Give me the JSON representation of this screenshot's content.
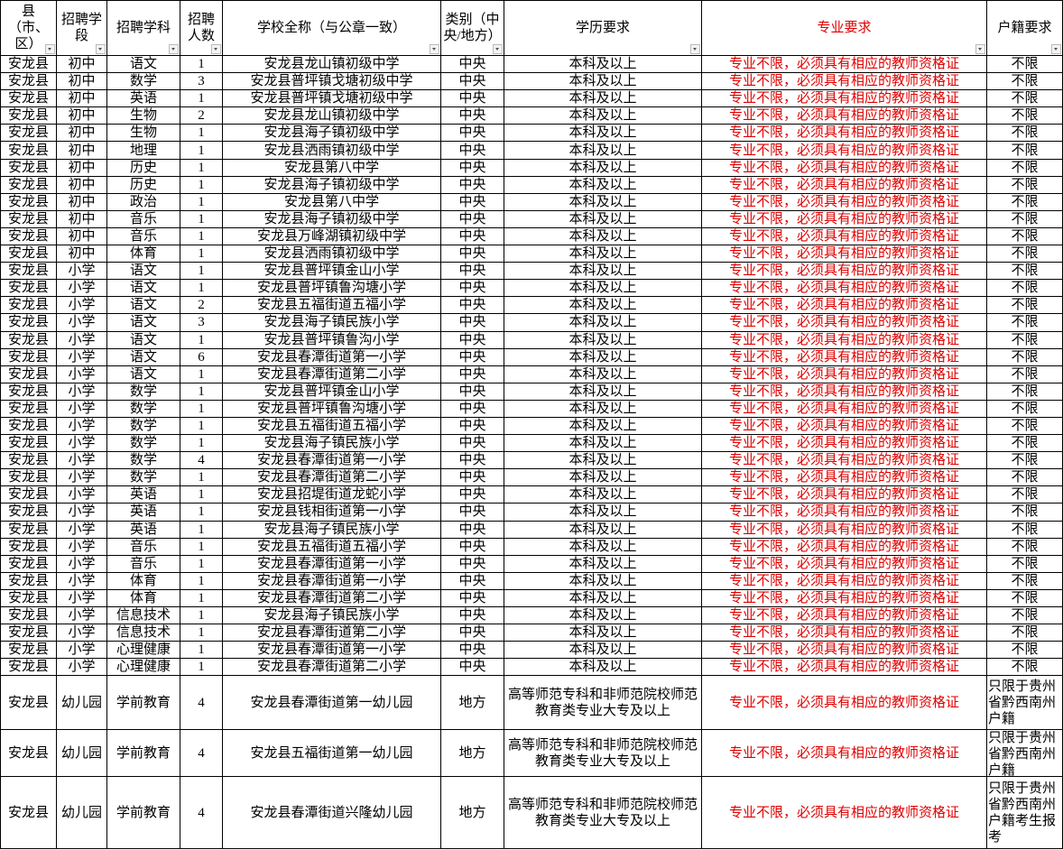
{
  "header": {
    "columns": [
      "县（市、区）",
      "招聘学段",
      "招聘学科",
      "招聘人数",
      "学校全称（与公章一致）",
      "类别（中央/地方）",
      "学历要求",
      "专业要求",
      "户籍要求"
    ]
  },
  "table": {
    "rows": [
      [
        "安龙县",
        "初中",
        "语文",
        "1",
        "安龙县龙山镇初级中学",
        "中央",
        "本科及以上",
        "专业不限，必须具有相应的教师资格证",
        "不限"
      ],
      [
        "安龙县",
        "初中",
        "数学",
        "3",
        "安龙县普坪镇戈塘初级中学",
        "中央",
        "本科及以上",
        "专业不限，必须具有相应的教师资格证",
        "不限"
      ],
      [
        "安龙县",
        "初中",
        "英语",
        "1",
        "安龙县普坪镇戈塘初级中学",
        "中央",
        "本科及以上",
        "专业不限，必须具有相应的教师资格证",
        "不限"
      ],
      [
        "安龙县",
        "初中",
        "生物",
        "2",
        "安龙县龙山镇初级中学",
        "中央",
        "本科及以上",
        "专业不限，必须具有相应的教师资格证",
        "不限"
      ],
      [
        "安龙县",
        "初中",
        "生物",
        "1",
        "安龙县海子镇初级中学",
        "中央",
        "本科及以上",
        "专业不限，必须具有相应的教师资格证",
        "不限"
      ],
      [
        "安龙县",
        "初中",
        "地理",
        "1",
        "安龙县洒雨镇初级中学",
        "中央",
        "本科及以上",
        "专业不限，必须具有相应的教师资格证",
        "不限"
      ],
      [
        "安龙县",
        "初中",
        "历史",
        "1",
        "安龙县第八中学",
        "中央",
        "本科及以上",
        "专业不限，必须具有相应的教师资格证",
        "不限"
      ],
      [
        "安龙县",
        "初中",
        "历史",
        "1",
        "安龙县海子镇初级中学",
        "中央",
        "本科及以上",
        "专业不限，必须具有相应的教师资格证",
        "不限"
      ],
      [
        "安龙县",
        "初中",
        "政治",
        "1",
        "安龙县第八中学",
        "中央",
        "本科及以上",
        "专业不限，必须具有相应的教师资格证",
        "不限"
      ],
      [
        "安龙县",
        "初中",
        "音乐",
        "1",
        "安龙县海子镇初级中学",
        "中央",
        "本科及以上",
        "专业不限，必须具有相应的教师资格证",
        "不限"
      ],
      [
        "安龙县",
        "初中",
        "音乐",
        "1",
        "安龙县万峰湖镇初级中学",
        "中央",
        "本科及以上",
        "专业不限，必须具有相应的教师资格证",
        "不限"
      ],
      [
        "安龙县",
        "初中",
        "体育",
        "1",
        "安龙县洒雨镇初级中学",
        "中央",
        "本科及以上",
        "专业不限，必须具有相应的教师资格证",
        "不限"
      ],
      [
        "安龙县",
        "小学",
        "语文",
        "1",
        "安龙县普坪镇金山小学",
        "中央",
        "本科及以上",
        "专业不限，必须具有相应的教师资格证",
        "不限"
      ],
      [
        "安龙县",
        "小学",
        "语文",
        "1",
        "安龙县普坪镇鲁沟塘小学",
        "中央",
        "本科及以上",
        "专业不限，必须具有相应的教师资格证",
        "不限"
      ],
      [
        "安龙县",
        "小学",
        "语文",
        "2",
        "安龙县五福街道五福小学",
        "中央",
        "本科及以上",
        "专业不限，必须具有相应的教师资格证",
        "不限"
      ],
      [
        "安龙县",
        "小学",
        "语文",
        "3",
        "安龙县海子镇民族小学",
        "中央",
        "本科及以上",
        "专业不限，必须具有相应的教师资格证",
        "不限"
      ],
      [
        "安龙县",
        "小学",
        "语文",
        "1",
        "安龙县普坪镇鲁沟小学",
        "中央",
        "本科及以上",
        "专业不限，必须具有相应的教师资格证",
        "不限"
      ],
      [
        "安龙县",
        "小学",
        "语文",
        "6",
        "安龙县春潭街道第一小学",
        "中央",
        "本科及以上",
        "专业不限，必须具有相应的教师资格证",
        "不限"
      ],
      [
        "安龙县",
        "小学",
        "语文",
        "1",
        "安龙县春潭街道第二小学",
        "中央",
        "本科及以上",
        "专业不限，必须具有相应的教师资格证",
        "不限"
      ],
      [
        "安龙县",
        "小学",
        "数学",
        "1",
        "安龙县普坪镇金山小学",
        "中央",
        "本科及以上",
        "专业不限，必须具有相应的教师资格证",
        "不限"
      ],
      [
        "安龙县",
        "小学",
        "数学",
        "1",
        "安龙县普坪镇鲁沟塘小学",
        "中央",
        "本科及以上",
        "专业不限，必须具有相应的教师资格证",
        "不限"
      ],
      [
        "安龙县",
        "小学",
        "数学",
        "1",
        "安龙县五福街道五福小学",
        "中央",
        "本科及以上",
        "专业不限，必须具有相应的教师资格证",
        "不限"
      ],
      [
        "安龙县",
        "小学",
        "数学",
        "1",
        "安龙县海子镇民族小学",
        "中央",
        "本科及以上",
        "专业不限，必须具有相应的教师资格证",
        "不限"
      ],
      [
        "安龙县",
        "小学",
        "数学",
        "4",
        "安龙县春潭街道第一小学",
        "中央",
        "本科及以上",
        "专业不限，必须具有相应的教师资格证",
        "不限"
      ],
      [
        "安龙县",
        "小学",
        "数学",
        "1",
        "安龙县春潭街道第二小学",
        "中央",
        "本科及以上",
        "专业不限，必须具有相应的教师资格证",
        "不限"
      ],
      [
        "安龙县",
        "小学",
        "英语",
        "1",
        "安龙县招堤街道龙蛇小学",
        "中央",
        "本科及以上",
        "专业不限，必须具有相应的教师资格证",
        "不限"
      ],
      [
        "安龙县",
        "小学",
        "英语",
        "1",
        "安龙县钱相街道第一小学",
        "中央",
        "本科及以上",
        "专业不限，必须具有相应的教师资格证",
        "不限"
      ],
      [
        "安龙县",
        "小学",
        "英语",
        "1",
        "安龙县海子镇民族小学",
        "中央",
        "本科及以上",
        "专业不限，必须具有相应的教师资格证",
        "不限"
      ],
      [
        "安龙县",
        "小学",
        "音乐",
        "1",
        "安龙县五福街道五福小学",
        "中央",
        "本科及以上",
        "专业不限，必须具有相应的教师资格证",
        "不限"
      ],
      [
        "安龙县",
        "小学",
        "音乐",
        "1",
        "安龙县春潭街道第一小学",
        "中央",
        "本科及以上",
        "专业不限，必须具有相应的教师资格证",
        "不限"
      ],
      [
        "安龙县",
        "小学",
        "体育",
        "1",
        "安龙县春潭街道第一小学",
        "中央",
        "本科及以上",
        "专业不限，必须具有相应的教师资格证",
        "不限"
      ],
      [
        "安龙县",
        "小学",
        "体育",
        "1",
        "安龙县春潭街道第二小学",
        "中央",
        "本科及以上",
        "专业不限，必须具有相应的教师资格证",
        "不限"
      ],
      [
        "安龙县",
        "小学",
        "信息技术",
        "1",
        "安龙县海子镇民族小学",
        "中央",
        "本科及以上",
        "专业不限，必须具有相应的教师资格证",
        "不限"
      ],
      [
        "安龙县",
        "小学",
        "信息技术",
        "1",
        "安龙县春潭街道第二小学",
        "中央",
        "本科及以上",
        "专业不限，必须具有相应的教师资格证",
        "不限"
      ],
      [
        "安龙县",
        "小学",
        "心理健康",
        "1",
        "安龙县春潭街道第一小学",
        "中央",
        "本科及以上",
        "专业不限，必须具有相应的教师资格证",
        "不限"
      ],
      [
        "安龙县",
        "小学",
        "心理健康",
        "1",
        "安龙县春潭街道第二小学",
        "中央",
        "本科及以上",
        "专业不限，必须具有相应的教师资格证",
        "不限"
      ],
      [
        "安龙县",
        "幼儿园",
        "学前教育",
        "4",
        "安龙县春潭街道第一幼儿园",
        "地方",
        "高等师范专科和非师范院校师范教育类专业大专及以上",
        "专业不限，必须具有相应的教师资格证",
        "只限于贵州省黔西南州户籍"
      ],
      [
        "安龙县",
        "幼儿园",
        "学前教育",
        "4",
        "安龙县五福街道第一幼儿园",
        "地方",
        "高等师范专科和非师范院校师范教育类专业大专及以上",
        "专业不限，必须具有相应的教师资格证",
        "只限于贵州省黔西南州户籍"
      ],
      [
        "安龙县",
        "幼儿园",
        "学前教育",
        "4",
        "安龙县春潭街道兴隆幼儿园",
        "地方",
        "高等师范专科和非师范院校师范教育类专业大专及以上",
        "专业不限，必须具有相应的教师资格证",
        "只限于贵州省黔西南州户籍考生报考"
      ]
    ]
  }
}
